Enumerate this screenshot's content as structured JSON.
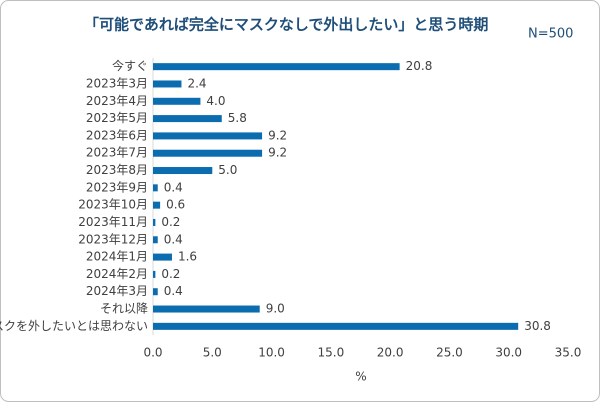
{
  "chart_data": {
    "type": "hbar",
    "title": "「可能であれば完全にマスクなしで外出したい」と思う時期",
    "subtitle": "N=500",
    "x_label": "%",
    "categories": [
      "今すぐ",
      "2023年3月",
      "2023年4月",
      "2023年5月",
      "2023年6月",
      "2023年7月",
      "2023年8月",
      "2023年9月",
      "2023年10月",
      "2023年11月",
      "2023年12月",
      "2024年1月",
      "2024年2月",
      "2024年3月",
      "それ以降",
      "マスクを外したいとは思わない"
    ],
    "values": [
      20.8,
      2.4,
      4.0,
      5.8,
      9.2,
      9.2,
      5.0,
      0.4,
      0.6,
      0.2,
      0.4,
      1.6,
      0.2,
      0.4,
      9.0,
      30.8
    ],
    "value_labels": [
      "20.8",
      "2.4",
      "4.0",
      "5.8",
      "9.2",
      "9.2",
      "5.0",
      "0.4",
      "0.6",
      "0.2",
      "0.4",
      "1.6",
      "0.2",
      "0.4",
      "9.0",
      "30.8"
    ],
    "color": "#0b6cb0",
    "xlim": [
      0,
      35
    ],
    "xticks": [
      {
        "value": 0,
        "label": "0.0"
      },
      {
        "value": 5,
        "label": "5.0"
      },
      {
        "value": 10,
        "label": "10.0"
      },
      {
        "value": 15,
        "label": "15.0"
      },
      {
        "value": 20,
        "label": "20.0"
      },
      {
        "value": 25,
        "label": "25.0"
      },
      {
        "value": 30,
        "label": "30.0"
      },
      {
        "value": 35,
        "label": "35.0"
      }
    ]
  }
}
